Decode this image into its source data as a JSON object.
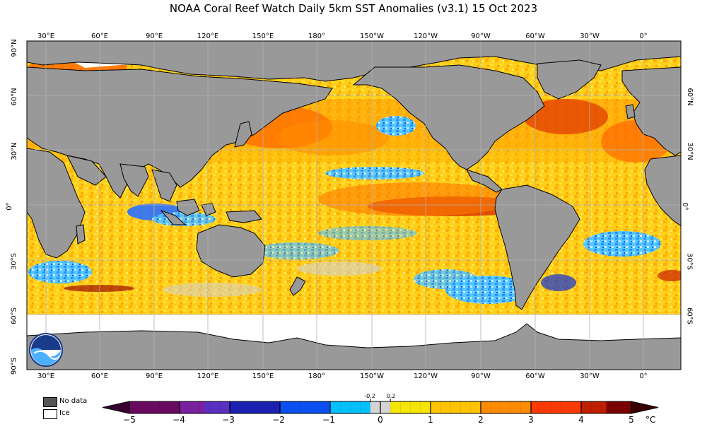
{
  "title": "NOAA Coral Reef Watch Daily 5km SST Anomalies  (v3.1)   15 Oct 2023",
  "longitude_labels": [
    "30°E",
    "60°E",
    "90°E",
    "120°E",
    "150°E",
    "180°",
    "150°W",
    "120°W",
    "90°W",
    "60°W",
    "30°W",
    "0°"
  ],
  "latitude_labels": [
    "90°N",
    "60°N",
    "30°N",
    "0°",
    "30°S",
    "60°S",
    "90°S"
  ],
  "latitude_labels_right": [
    "60°N",
    "30°N",
    "0°",
    "30°S",
    "60°S"
  ],
  "legend": {
    "no_data_label": "No data",
    "ice_label": "Ice",
    "no_data_color": "#555555",
    "ice_color": "#ffffff"
  },
  "colorbar": {
    "ticks": [
      "−5",
      "−4",
      "−3",
      "−2",
      "−1",
      "0",
      "1",
      "2",
      "3",
      "4",
      "5"
    ],
    "small_ticks": [
      "-0.2",
      "0.2"
    ],
    "unit": "°C",
    "colors": [
      "#3a0030",
      "#6a0a5f",
      "#8a22a8",
      "#2f20a8",
      "#1030d8",
      "#0a68ff",
      "#00c0ff",
      "#d4d4d4",
      "#f5e600",
      "#ffc400",
      "#ff8c00",
      "#ff3a00",
      "#c01e00",
      "#7a0000"
    ]
  },
  "logo": {
    "text": "NOAA"
  }
}
